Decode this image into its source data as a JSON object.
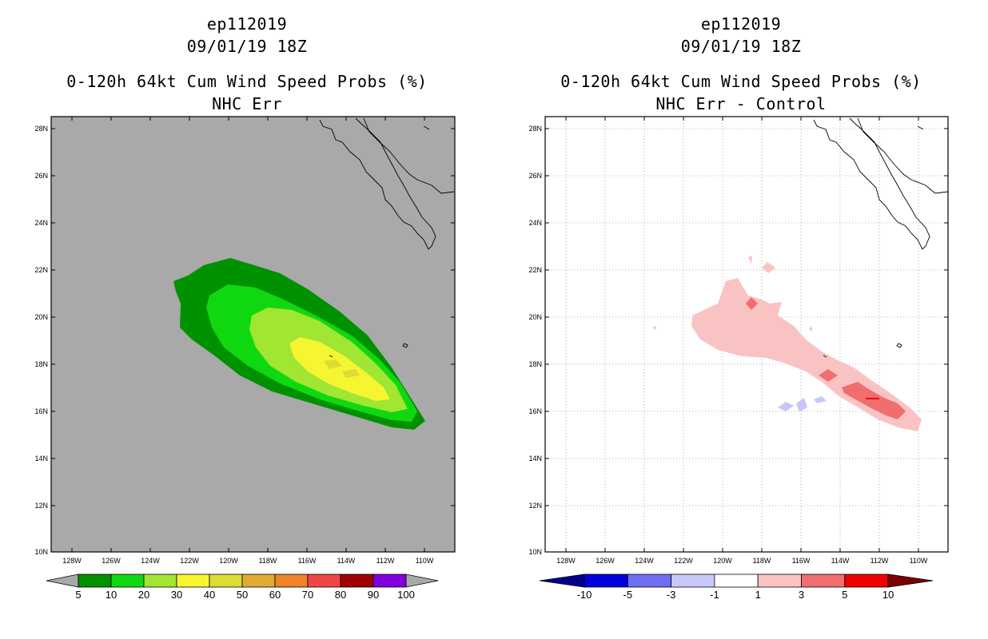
{
  "left_panel": {
    "title_line1": "ep112019",
    "title_line2": "09/01/19 18Z",
    "title_line3": "0-120h 64kt Cum Wind Speed Probs (%)",
    "title_line4": "NHC Err",
    "background_color": "#a9a9a9",
    "colorbar": {
      "labels": [
        "5",
        "10",
        "20",
        "30",
        "40",
        "50",
        "60",
        "70",
        "80",
        "90",
        "100"
      ],
      "colors": [
        "#009100",
        "#10d810",
        "#a0e632",
        "#f5f532",
        "#dcdc32",
        "#e1aa32",
        "#f08228",
        "#f04646",
        "#a00000",
        "#8200dc"
      ]
    }
  },
  "right_panel": {
    "title_line1": "ep112019",
    "title_line2": "09/01/19 18Z",
    "title_line3": "0-120h 64kt Cum Wind Speed Probs (%)",
    "title_line4": "NHC Err - Control",
    "colorbar": {
      "labels": [
        "-10",
        "-5",
        "-3",
        "-1",
        "1",
        "3",
        "5",
        "10"
      ],
      "colors": [
        "#0000dc",
        "#6e6ef5",
        "#c8c8f8",
        "#ffffff",
        "#fac3c3",
        "#f06e6e",
        "#f00000"
      ]
    }
  },
  "axes": {
    "lat_labels": [
      "28N",
      "26N",
      "24N",
      "22N",
      "20N",
      "18N",
      "16N",
      "14N",
      "12N",
      "10N"
    ],
    "lon_labels": [
      "128W",
      "126W",
      "124W",
      "122W",
      "120W",
      "118W",
      "116W",
      "114W",
      "112W",
      "110W"
    ]
  }
}
